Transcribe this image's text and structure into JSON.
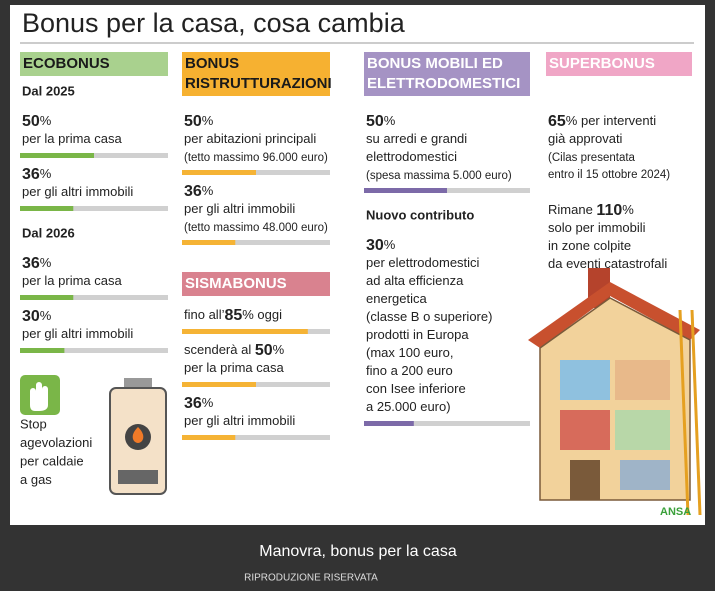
{
  "title": "Bonus per la casa, cosa cambia",
  "columns": [
    {
      "header": [
        "ECOBONUS"
      ],
      "color": "#a9d18e",
      "header_text_color": "#1a1a1a",
      "bar_color": "#7ab648",
      "blocks": [
        {
          "heading": "Dal 2025"
        },
        {
          "lines": [
            [
              {
                "text": "50",
                "bold": true
              },
              {
                "text": "%"
              }
            ],
            [
              {
                "text": "per la prima casa"
              }
            ]
          ],
          "bar": 50
        },
        {
          "lines": [
            [
              {
                "text": "36",
                "bold": true
              },
              {
                "text": "%"
              }
            ],
            [
              {
                "text": "per gli altri immobili"
              }
            ]
          ],
          "bar": 36
        },
        {
          "heading": "Dal 2026"
        },
        {
          "lines": [
            [
              {
                "text": "36",
                "bold": true
              },
              {
                "text": "%"
              }
            ],
            [
              {
                "text": "per la prima casa"
              }
            ]
          ],
          "bar": 36
        },
        {
          "lines": [
            [
              {
                "text": "30",
                "bold": true
              },
              {
                "text": "%"
              }
            ],
            [
              {
                "text": "per gli altri immobili"
              }
            ]
          ],
          "bar": 30
        }
      ]
    },
    {
      "header": [
        "BONUS",
        "RISTRUTTURAZIONI"
      ],
      "color": "#f6b131",
      "header_text_color": "#1a1a1a",
      "bar_color": "#f5b335",
      "blocks": [
        {
          "lines": [
            [
              {
                "text": "50",
                "bold": true
              },
              {
                "text": "%"
              }
            ],
            [
              {
                "text": "per abitazioni principali"
              }
            ],
            [
              {
                "text": "(tetto massimo 96.000 euro)",
                "small": true
              }
            ]
          ],
          "bar": 50
        },
        {
          "lines": [
            [
              {
                "text": "36",
                "bold": true
              },
              {
                "text": "%"
              }
            ],
            [
              {
                "text": "per gli altri immobili"
              }
            ],
            [
              {
                "text": "(tetto massimo 48.000 euro)",
                "small": true
              }
            ]
          ],
          "bar": 36
        },
        {
          "subheader": "SISMABONUS",
          "color": "#d9828f"
        },
        {
          "lines": [
            [
              {
                "text": "fino all’"
              },
              {
                "text": "85",
                "bold": true
              },
              {
                "text": "% oggi"
              }
            ]
          ],
          "bar": 85
        },
        {
          "lines": [
            [
              {
                "text": "scenderà al "
              },
              {
                "text": "50",
                "bold": true
              },
              {
                "text": "%"
              }
            ],
            [
              {
                "text": "per la prima casa"
              }
            ]
          ],
          "bar": 50
        },
        {
          "lines": [
            [
              {
                "text": "36",
                "bold": true
              },
              {
                "text": "%"
              }
            ],
            [
              {
                "text": "per gli altri immobili"
              }
            ]
          ],
          "bar": 36
        }
      ]
    },
    {
      "header": [
        "BONUS MOBILI ED",
        "ELETTRODOMESTICI"
      ],
      "color": "#a593c4",
      "header_text_color": "#ffffff",
      "bar_color": "#7c6aa8",
      "blocks": [
        {
          "lines": [
            [
              {
                "text": "50",
                "bold": true
              },
              {
                "text": "%"
              }
            ],
            [
              {
                "text": "su arredi e grandi"
              }
            ],
            [
              {
                "text": "elettrodomestici"
              }
            ],
            [
              {
                "text": "(spesa massima 5.000 euro)",
                "small": true
              }
            ]
          ],
          "bar": 50
        },
        {
          "heading": "Nuovo contributo"
        },
        {
          "lines": [
            [
              {
                "text": "30",
                "bold": true
              },
              {
                "text": "%"
              }
            ],
            [
              {
                "text": "per elettrodomestici"
              }
            ],
            [
              {
                "text": "ad alta efficienza"
              }
            ],
            [
              {
                "text": "energetica"
              }
            ],
            [
              {
                "text": "(classe B o superiore)"
              }
            ],
            [
              {
                "text": "prodotti in Europa"
              }
            ],
            [
              {
                "text": "(max 100 euro,"
              }
            ],
            [
              {
                "text": "fino a 200 euro"
              }
            ],
            [
              {
                "text": "con Isee inferiore"
              }
            ],
            [
              {
                "text": "a 25.000 euro)"
              }
            ]
          ],
          "bar": 30
        }
      ]
    },
    {
      "header": [
        "SUPERBONUS"
      ],
      "color": "#f0a6c6",
      "header_text_color": "#ffffff",
      "bar_color": "#e07aa8",
      "blocks": [
        {
          "lines": [
            [
              {
                "text": "65",
                "bold": true
              },
              {
                "text": "% per interventi"
              }
            ],
            [
              {
                "text": "già approvati"
              }
            ],
            [
              {
                "text": "(Cilas presentata",
                "small": true
              }
            ],
            [
              {
                "text": "entro il 15 ottobre 2024)",
                "small": true
              }
            ]
          ]
        },
        {
          "lines": [
            [
              {
                "text": "Rimane "
              },
              {
                "text": "110",
                "bold": true
              },
              {
                "text": "%"
              }
            ],
            [
              {
                "text": "solo per immobili"
              }
            ],
            [
              {
                "text": "in zone colpite"
              }
            ],
            [
              {
                "text": "da eventi catastrofali"
              }
            ]
          ]
        }
      ]
    }
  ],
  "note": [
    "Stop",
    "agevolazioni",
    "per caldaie",
    "a gas"
  ],
  "source": "ANSA",
  "caption": "Manovra, bonus per la casa",
  "credit": "RIPRODUZIONE RISERVATA"
}
